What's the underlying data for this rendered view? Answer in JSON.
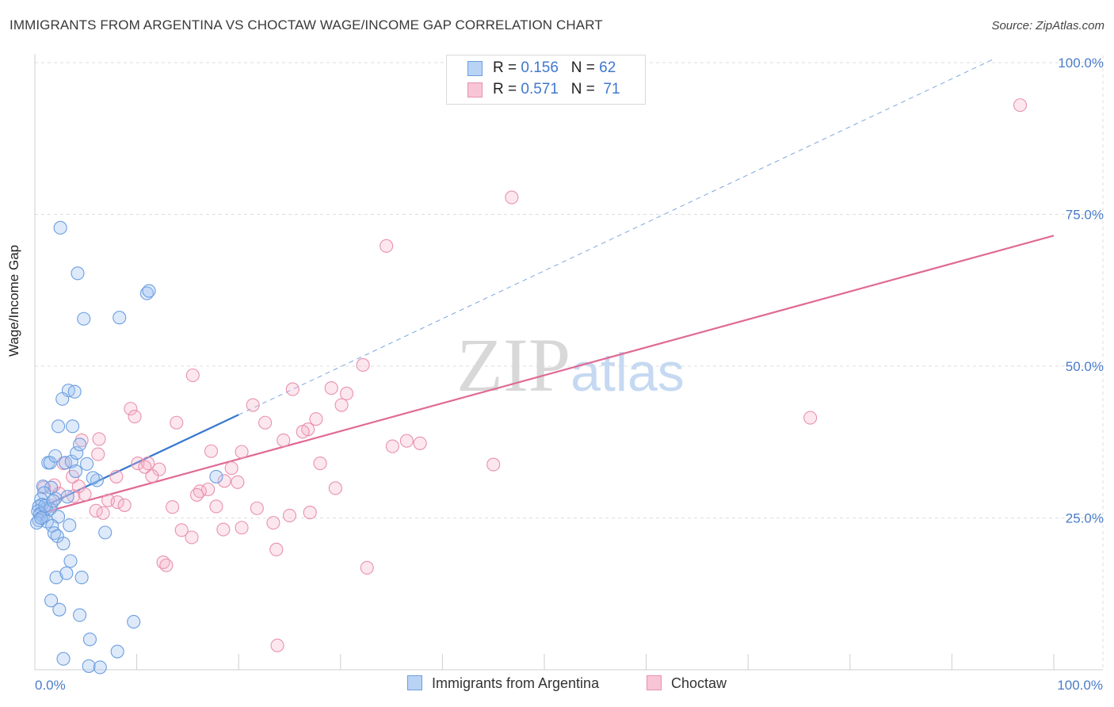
{
  "chart_data": {
    "type": "scatter",
    "title": "IMMIGRANTS FROM ARGENTINA VS CHOCTAW WAGE/INCOME GAP CORRELATION CHART",
    "source": "Source: ZipAtlas.com",
    "xlabel": "",
    "ylabel": "Wage/Income Gap",
    "xlim": [
      0,
      100
    ],
    "ylim": [
      0,
      100
    ],
    "x_tick_labels": [
      "0.0%",
      "100.0%"
    ],
    "y_ticks": [
      25,
      50,
      75,
      100
    ],
    "y_tick_labels": [
      "25.0%",
      "50.0%",
      "75.0%",
      "100.0%"
    ],
    "watermark": "ZIPatlas",
    "legend": [
      {
        "name": "Immigrants from Argentina",
        "r_label": "R = ",
        "r": "0.156",
        "n_label": "N = ",
        "n": "62",
        "fill": "#b9d3f5",
        "stroke": "#6b9ee0"
      },
      {
        "name": "Choctaw",
        "r_label": "R = ",
        "r": "0.571",
        "n_label": "N = ",
        "n": "71",
        "fill": "#f8c5d6",
        "stroke": "#e891af"
      }
    ],
    "series": [
      {
        "name": "Immigrants from Argentina",
        "point_fill": "rgba(160,195,240,0.35)",
        "point_stroke": "#6b9ee0",
        "trend_color": "#3a78d0",
        "trend_solid": [
          [
            0,
            26.2
          ],
          [
            20,
            42.0
          ]
        ],
        "trend_dashed": [
          [
            20,
            42.0
          ],
          [
            94,
            100.5
          ]
        ],
        "points": [
          [
            2.5,
            72.8
          ],
          [
            4.2,
            65.3
          ],
          [
            4.8,
            57.8
          ],
          [
            8.3,
            58.0
          ],
          [
            11.0,
            62.0
          ],
          [
            11.2,
            62.4
          ],
          [
            3.3,
            46.0
          ],
          [
            3.9,
            45.8
          ],
          [
            2.7,
            44.6
          ],
          [
            2.3,
            40.1
          ],
          [
            3.7,
            40.1
          ],
          [
            1.3,
            34.1
          ],
          [
            1.5,
            34.1
          ],
          [
            2.0,
            35.2
          ],
          [
            3.0,
            34.1
          ],
          [
            3.6,
            34.3
          ],
          [
            4.1,
            35.7
          ],
          [
            4.4,
            37.1
          ],
          [
            5.1,
            33.9
          ],
          [
            4.0,
            32.7
          ],
          [
            6.1,
            31.2
          ],
          [
            5.7,
            31.6
          ],
          [
            0.8,
            30.2
          ],
          [
            1.6,
            30.0
          ],
          [
            0.9,
            29.1
          ],
          [
            2.0,
            28.2
          ],
          [
            0.6,
            28.1
          ],
          [
            0.7,
            27.2
          ],
          [
            1.1,
            26.6
          ],
          [
            1.5,
            26.5
          ],
          [
            0.4,
            26.9
          ],
          [
            0.3,
            26.1
          ],
          [
            0.5,
            25.7
          ],
          [
            0.8,
            25.2
          ],
          [
            0.4,
            24.6
          ],
          [
            1.2,
            24.4
          ],
          [
            2.3,
            25.2
          ],
          [
            0.2,
            24.2
          ],
          [
            1.7,
            23.7
          ],
          [
            3.4,
            23.8
          ],
          [
            1.9,
            22.5
          ],
          [
            2.2,
            22.0
          ],
          [
            6.9,
            22.6
          ],
          [
            2.8,
            20.8
          ],
          [
            17.8,
            31.8
          ],
          [
            3.5,
            17.9
          ],
          [
            2.1,
            15.2
          ],
          [
            3.1,
            15.9
          ],
          [
            4.6,
            15.2
          ],
          [
            1.6,
            11.4
          ],
          [
            2.4,
            9.9
          ],
          [
            4.4,
            9.0
          ],
          [
            9.7,
            7.9
          ],
          [
            5.4,
            5.0
          ],
          [
            8.1,
            3.0
          ],
          [
            2.8,
            1.8
          ],
          [
            5.3,
            0.6
          ],
          [
            6.4,
            0.4
          ],
          [
            1.0,
            27.0
          ],
          [
            1.8,
            27.8
          ],
          [
            0.6,
            25.0
          ],
          [
            3.2,
            28.5
          ]
        ]
      },
      {
        "name": "Choctaw",
        "point_fill": "rgba(245,175,200,0.30)",
        "point_stroke": "#e891af",
        "trend_color": "#e06a95",
        "trend_solid": [
          [
            0,
            25.5
          ],
          [
            100,
            71.5
          ]
        ],
        "points": [
          [
            96.7,
            93.0
          ],
          [
            46.8,
            77.8
          ],
          [
            34.5,
            69.8
          ],
          [
            15.5,
            48.5
          ],
          [
            32.2,
            50.2
          ],
          [
            25.3,
            46.2
          ],
          [
            29.1,
            46.4
          ],
          [
            30.6,
            45.5
          ],
          [
            21.4,
            43.6
          ],
          [
            30.1,
            43.6
          ],
          [
            9.4,
            43.0
          ],
          [
            9.8,
            41.7
          ],
          [
            13.9,
            40.7
          ],
          [
            22.6,
            40.7
          ],
          [
            27.6,
            41.3
          ],
          [
            26.8,
            39.6
          ],
          [
            26.3,
            39.2
          ],
          [
            76.1,
            41.5
          ],
          [
            24.4,
            37.8
          ],
          [
            36.5,
            37.7
          ],
          [
            37.8,
            37.3
          ],
          [
            35.1,
            36.8
          ],
          [
            4.6,
            37.8
          ],
          [
            6.3,
            38.0
          ],
          [
            17.3,
            36.0
          ],
          [
            20.3,
            35.9
          ],
          [
            28.0,
            34.0
          ],
          [
            45.0,
            33.8
          ],
          [
            6.2,
            35.5
          ],
          [
            10.1,
            34.0
          ],
          [
            11.1,
            34.0
          ],
          [
            2.8,
            34.0
          ],
          [
            10.8,
            33.4
          ],
          [
            12.2,
            33.0
          ],
          [
            19.3,
            33.2
          ],
          [
            3.7,
            31.8
          ],
          [
            8.0,
            31.8
          ],
          [
            11.5,
            31.9
          ],
          [
            18.6,
            31.1
          ],
          [
            19.9,
            30.9
          ],
          [
            29.5,
            29.9
          ],
          [
            1.9,
            30.4
          ],
          [
            4.3,
            30.2
          ],
          [
            17.0,
            29.7
          ],
          [
            16.2,
            29.4
          ],
          [
            15.9,
            28.8
          ],
          [
            3.8,
            28.6
          ],
          [
            4.9,
            28.9
          ],
          [
            7.2,
            27.9
          ],
          [
            8.1,
            27.6
          ],
          [
            8.8,
            27.1
          ],
          [
            13.5,
            26.8
          ],
          [
            17.8,
            26.9
          ],
          [
            21.8,
            26.6
          ],
          [
            0.9,
            30.0
          ],
          [
            6.0,
            26.2
          ],
          [
            6.7,
            25.8
          ],
          [
            27.0,
            25.9
          ],
          [
            25.0,
            25.4
          ],
          [
            1.6,
            27.0
          ],
          [
            23.4,
            24.2
          ],
          [
            20.3,
            23.4
          ],
          [
            14.4,
            23.0
          ],
          [
            18.5,
            23.1
          ],
          [
            15.4,
            21.8
          ],
          [
            23.7,
            19.8
          ],
          [
            12.6,
            17.7
          ],
          [
            12.9,
            17.2
          ],
          [
            32.6,
            16.8
          ],
          [
            23.8,
            4.0
          ],
          [
            2.4,
            29.0
          ]
        ]
      }
    ]
  }
}
